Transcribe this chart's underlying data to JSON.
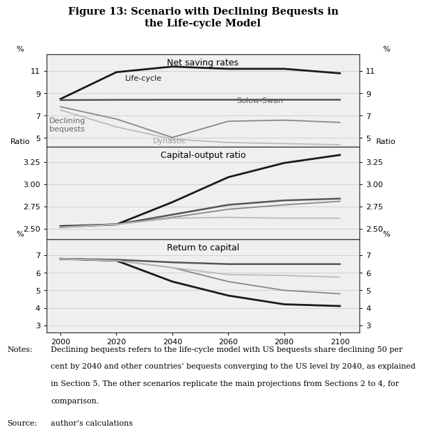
{
  "title_line1": "Figure 13: Scenario with Declining Bequests in",
  "title_line2": "the Life-cycle Model",
  "x": [
    2000,
    2020,
    2040,
    2060,
    2080,
    2100
  ],
  "panel1_title": "Net saving rates",
  "panel1_ylabel_left": "%",
  "panel1_ylabel_right": "%",
  "panel1_yticks": [
    5,
    7,
    9,
    11
  ],
  "panel1_ylim": [
    4.2,
    12.5
  ],
  "panel1_series": {
    "Life-cycle": {
      "values": [
        8.5,
        10.9,
        11.4,
        11.2,
        11.2,
        10.8
      ],
      "color": "#1a1a1a",
      "lw": 2.0
    },
    "Solow-Swan": {
      "values": [
        8.4,
        8.42,
        8.43,
        8.43,
        8.43,
        8.43
      ],
      "color": "#555555",
      "lw": 1.8
    },
    "Declining bequests": {
      "values": [
        7.8,
        6.7,
        5.05,
        6.5,
        6.6,
        6.4
      ],
      "color": "#888888",
      "lw": 1.3
    },
    "Dynastic": {
      "values": [
        7.5,
        6.0,
        4.9,
        4.6,
        4.5,
        4.4
      ],
      "color": "#bbbbbb",
      "lw": 1.3
    }
  },
  "panel2_title": "Capital-output ratio",
  "panel2_ylabel_left": "Ratio",
  "panel2_ylabel_right": "Ratio",
  "panel2_yticks": [
    2.5,
    2.75,
    3.0,
    3.25
  ],
  "panel2_ylim": [
    2.38,
    3.42
  ],
  "panel2_series": {
    "Life-cycle": {
      "values": [
        2.53,
        2.55,
        2.8,
        3.08,
        3.24,
        3.33
      ],
      "color": "#1a1a1a",
      "lw": 2.0
    },
    "Solow-Swan": {
      "values": [
        2.52,
        2.55,
        2.66,
        2.77,
        2.82,
        2.84
      ],
      "color": "#555555",
      "lw": 1.8
    },
    "Declining bequests": {
      "values": [
        2.52,
        2.55,
        2.63,
        2.72,
        2.77,
        2.81
      ],
      "color": "#888888",
      "lw": 1.3
    },
    "Dynastic": {
      "values": [
        2.52,
        2.55,
        2.62,
        2.63,
        2.62,
        2.62
      ],
      "color": "#bbbbbb",
      "lw": 1.3
    }
  },
  "panel3_title": "Return to capital",
  "panel3_ylabel_left": "%",
  "panel3_ylabel_right": "%",
  "panel3_yticks": [
    3,
    4,
    5,
    6,
    7
  ],
  "panel3_ylim": [
    2.6,
    7.9
  ],
  "panel3_series": {
    "Life-cycle": {
      "values": [
        6.8,
        6.7,
        5.5,
        4.7,
        4.2,
        4.1
      ],
      "color": "#1a1a1a",
      "lw": 2.0
    },
    "Solow-Swan": {
      "values": [
        6.8,
        6.75,
        6.6,
        6.5,
        6.5,
        6.5
      ],
      "color": "#555555",
      "lw": 1.8
    },
    "Declining bequests": {
      "values": [
        6.8,
        6.7,
        6.3,
        5.5,
        5.0,
        4.8
      ],
      "color": "#888888",
      "lw": 1.3
    },
    "Dynastic": {
      "values": [
        6.8,
        6.7,
        6.3,
        5.9,
        5.85,
        5.75
      ],
      "color": "#bbbbbb",
      "lw": 1.3
    }
  },
  "notes_label": "Notes:",
  "notes_line1": "Declining bequests refers to the life-cycle model with US bequests share declining 50 per",
  "notes_line2": "cent by 2040 and other countries’ bequests converging to the US level by 2040, as explained",
  "notes_line3": "in Section 5. The other scenarios replicate the main projections from Sections 2 to 4, for",
  "notes_line4": "comparison.",
  "source_label": "Source:",
  "source_text": "author’s calculations",
  "bg_color": "#ffffff",
  "panel_bg": "#efefef",
  "grid_color": "#d0d0d0",
  "border_color": "#333333",
  "xticks": [
    2000,
    2020,
    2040,
    2060,
    2080,
    2100
  ]
}
